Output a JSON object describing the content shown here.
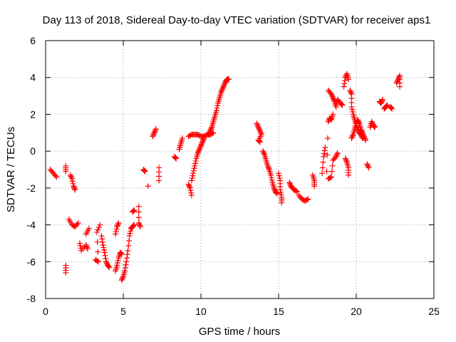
{
  "chart_data": {
    "type": "scatter",
    "title": "Day 113 of 2018, Sidereal Day-to-day VTEC variation (SDTVAR) for receiver aps1",
    "xlabel": "GPS time / hours",
    "ylabel": "SDTVAR / TECUs",
    "xlim": [
      0,
      25
    ],
    "ylim": [
      -8,
      6
    ],
    "xticks": [
      0,
      5,
      10,
      15,
      20,
      25
    ],
    "yticks": [
      -8,
      -6,
      -4,
      -2,
      0,
      2,
      4,
      6
    ],
    "grid": true,
    "marker": "+",
    "color": "#ff0000",
    "segments": [
      [
        [
          0.3,
          -1.0
        ],
        [
          0.5,
          -1.2
        ],
        [
          0.7,
          -1.4
        ]
      ],
      [
        [
          1.3,
          -0.8
        ],
        [
          1.3,
          -1.1
        ]
      ],
      [
        [
          1.6,
          -1.3
        ],
        [
          1.7,
          -1.5
        ],
        [
          1.8,
          -1.9
        ],
        [
          1.9,
          -2.1
        ]
      ],
      [
        [
          1.3,
          -6.2
        ],
        [
          1.3,
          -6.6
        ]
      ],
      [
        [
          1.5,
          -3.7
        ],
        [
          1.7,
          -4.0
        ],
        [
          1.9,
          -4.1
        ],
        [
          2.1,
          -3.9
        ]
      ],
      [
        [
          2.2,
          -5.0
        ],
        [
          2.3,
          -5.4
        ],
        [
          2.6,
          -5.1
        ],
        [
          2.7,
          -5.3
        ]
      ],
      [
        [
          2.6,
          -4.5
        ],
        [
          2.8,
          -4.2
        ]
      ],
      [
        [
          3.2,
          -5.9
        ],
        [
          3.4,
          -6.0
        ],
        [
          3.3,
          -4.4
        ],
        [
          3.5,
          -4.0
        ]
      ],
      [
        [
          3.6,
          -4.6
        ],
        [
          3.7,
          -5.1
        ],
        [
          3.8,
          -5.5
        ],
        [
          3.9,
          -6.0
        ],
        [
          4.0,
          -6.2
        ],
        [
          4.1,
          -6.3
        ]
      ],
      [
        [
          4.5,
          -6.5
        ],
        [
          4.6,
          -6.2
        ],
        [
          4.7,
          -5.8
        ],
        [
          4.8,
          -5.5
        ],
        [
          4.9,
          -5.6
        ]
      ],
      [
        [
          4.5,
          -4.5
        ],
        [
          4.6,
          -4.1
        ],
        [
          4.7,
          -3.9
        ]
      ],
      [
        [
          4.9,
          -7.0
        ],
        [
          5.0,
          -6.8
        ],
        [
          5.1,
          -6.5
        ],
        [
          5.2,
          -6.0
        ],
        [
          5.3,
          -5.4
        ],
        [
          5.4,
          -4.6
        ],
        [
          5.5,
          -4.2
        ],
        [
          5.6,
          -4.1
        ],
        [
          5.7,
          -4.0
        ]
      ],
      [
        [
          5.6,
          -3.3
        ],
        [
          5.7,
          -3.2
        ]
      ],
      [
        [
          6.0,
          -3.0
        ],
        [
          6.0,
          -3.9
        ],
        [
          6.1,
          -4.1
        ]
      ],
      [
        [
          6.3,
          -1.0
        ],
        [
          6.4,
          -1.1
        ]
      ],
      [
        [
          6.6,
          -1.9
        ]
      ],
      [
        [
          6.9,
          0.8
        ],
        [
          7.0,
          1.0
        ],
        [
          7.1,
          1.2
        ]
      ],
      [
        [
          7.3,
          -0.9
        ],
        [
          7.3,
          -1.6
        ]
      ],
      [
        [
          8.3,
          -0.3
        ],
        [
          8.4,
          -0.4
        ]
      ],
      [
        [
          8.6,
          0.1
        ],
        [
          8.7,
          0.4
        ],
        [
          8.8,
          0.7
        ]
      ],
      [
        [
          9.2,
          -1.8
        ],
        [
          9.3,
          -2.0
        ],
        [
          9.4,
          -2.4
        ]
      ],
      [
        [
          9.2,
          0.8
        ],
        [
          9.4,
          0.9
        ],
        [
          9.6,
          0.9
        ],
        [
          9.8,
          0.9
        ],
        [
          10.0,
          0.8
        ],
        [
          10.2,
          0.8
        ],
        [
          10.4,
          0.9
        ],
        [
          10.6,
          0.9
        ],
        [
          10.8,
          1.0
        ]
      ],
      [
        [
          9.4,
          -1.6
        ],
        [
          9.5,
          -1.2
        ],
        [
          9.6,
          -0.8
        ],
        [
          9.7,
          -0.4
        ],
        [
          9.8,
          -0.1
        ],
        [
          9.9,
          0.1
        ],
        [
          10.0,
          0.3
        ],
        [
          10.1,
          0.5
        ],
        [
          10.2,
          0.7
        ]
      ],
      [
        [
          10.5,
          0.9
        ],
        [
          10.6,
          1.1
        ],
        [
          10.7,
          1.3
        ],
        [
          10.8,
          1.6
        ],
        [
          10.9,
          1.9
        ],
        [
          11.0,
          2.2
        ],
        [
          11.1,
          2.6
        ],
        [
          11.2,
          2.9
        ],
        [
          11.3,
          3.2
        ],
        [
          11.4,
          3.4
        ],
        [
          11.5,
          3.6
        ],
        [
          11.6,
          3.8
        ],
        [
          11.7,
          3.9
        ],
        [
          11.8,
          3.9
        ]
      ],
      [
        [
          13.6,
          1.5
        ],
        [
          13.7,
          1.3
        ],
        [
          13.8,
          1.1
        ],
        [
          13.9,
          0.9
        ],
        [
          13.7,
          0.6
        ],
        [
          13.8,
          0.5
        ]
      ],
      [
        [
          14.0,
          0.0
        ],
        [
          14.1,
          -0.2
        ],
        [
          14.2,
          -0.5
        ],
        [
          14.3,
          -0.8
        ],
        [
          14.4,
          -1.0
        ],
        [
          14.5,
          -1.3
        ],
        [
          14.6,
          -1.7
        ],
        [
          14.7,
          -2.0
        ],
        [
          14.8,
          -2.2
        ],
        [
          14.9,
          -2.3
        ]
      ],
      [
        [
          15.0,
          -1.2
        ],
        [
          15.1,
          -1.6
        ],
        [
          15.1,
          -2.1
        ],
        [
          15.2,
          -2.5
        ],
        [
          15.2,
          -2.8
        ]
      ],
      [
        [
          15.7,
          -1.7
        ],
        [
          15.8,
          -1.9
        ],
        [
          15.9,
          -2.0
        ],
        [
          16.0,
          -2.1
        ],
        [
          16.2,
          -2.2
        ]
      ],
      [
        [
          16.3,
          -2.4
        ],
        [
          16.5,
          -2.6
        ],
        [
          16.7,
          -2.7
        ],
        [
          16.9,
          -2.6
        ]
      ],
      [
        [
          17.2,
          -1.3
        ],
        [
          17.3,
          -1.6
        ],
        [
          17.3,
          -1.9
        ]
      ],
      [
        [
          17.8,
          -1.2
        ],
        [
          17.9,
          -0.3
        ],
        [
          18.0,
          0.2
        ]
      ],
      [
        [
          18.1,
          -1.1
        ],
        [
          18.2,
          1.6
        ],
        [
          18.3,
          1.8
        ],
        [
          18.4,
          1.7
        ],
        [
          18.5,
          2.0
        ]
      ],
      [
        [
          18.2,
          3.3
        ],
        [
          18.4,
          3.1
        ],
        [
          18.5,
          2.9
        ],
        [
          18.6,
          2.7
        ],
        [
          18.7,
          2.4
        ]
      ],
      [
        [
          18.2,
          -1.5
        ],
        [
          18.4,
          -1.4
        ],
        [
          18.5,
          -0.5
        ],
        [
          18.7,
          -0.3
        ],
        [
          18.8,
          -0.1
        ]
      ],
      [
        [
          18.7,
          2.5
        ],
        [
          18.8,
          2.8
        ],
        [
          19.0,
          2.6
        ],
        [
          19.1,
          2.5
        ]
      ],
      [
        [
          19.2,
          3.5
        ],
        [
          19.3,
          4.0
        ],
        [
          19.4,
          4.2
        ],
        [
          19.5,
          3.9
        ]
      ],
      [
        [
          19.3,
          -0.4
        ],
        [
          19.4,
          -0.6
        ],
        [
          19.5,
          -0.9
        ],
        [
          19.5,
          -1.3
        ]
      ],
      [
        [
          19.6,
          3.3
        ],
        [
          19.7,
          3.1
        ],
        [
          19.7,
          2.4
        ],
        [
          19.8,
          2.0
        ],
        [
          19.9,
          1.7
        ],
        [
          20.0,
          1.4
        ],
        [
          20.1,
          1.2
        ],
        [
          20.2,
          1.0
        ],
        [
          20.3,
          0.9
        ],
        [
          20.4,
          0.7
        ]
      ],
      [
        [
          19.7,
          0.7
        ],
        [
          19.8,
          0.9
        ],
        [
          19.9,
          1.2
        ],
        [
          20.0,
          1.5
        ],
        [
          20.1,
          1.7
        ],
        [
          20.2,
          1.5
        ],
        [
          20.3,
          1.2
        ],
        [
          20.4,
          1.0
        ],
        [
          20.5,
          0.8
        ],
        [
          20.6,
          0.6
        ]
      ],
      [
        [
          20.7,
          -0.7
        ],
        [
          20.8,
          -0.9
        ]
      ],
      [
        [
          20.9,
          1.3
        ],
        [
          21.0,
          1.6
        ],
        [
          21.1,
          1.4
        ],
        [
          21.2,
          1.3
        ]
      ],
      [
        [
          21.5,
          2.7
        ],
        [
          21.6,
          2.6
        ],
        [
          21.7,
          2.8
        ]
      ],
      [
        [
          21.8,
          2.3
        ],
        [
          21.9,
          2.4
        ],
        [
          22.0,
          2.5
        ]
      ],
      [
        [
          22.2,
          2.4
        ],
        [
          22.3,
          2.3
        ]
      ],
      [
        [
          22.6,
          3.7
        ],
        [
          22.7,
          3.9
        ],
        [
          22.8,
          4.1
        ],
        [
          22.8,
          3.5
        ]
      ]
    ]
  }
}
